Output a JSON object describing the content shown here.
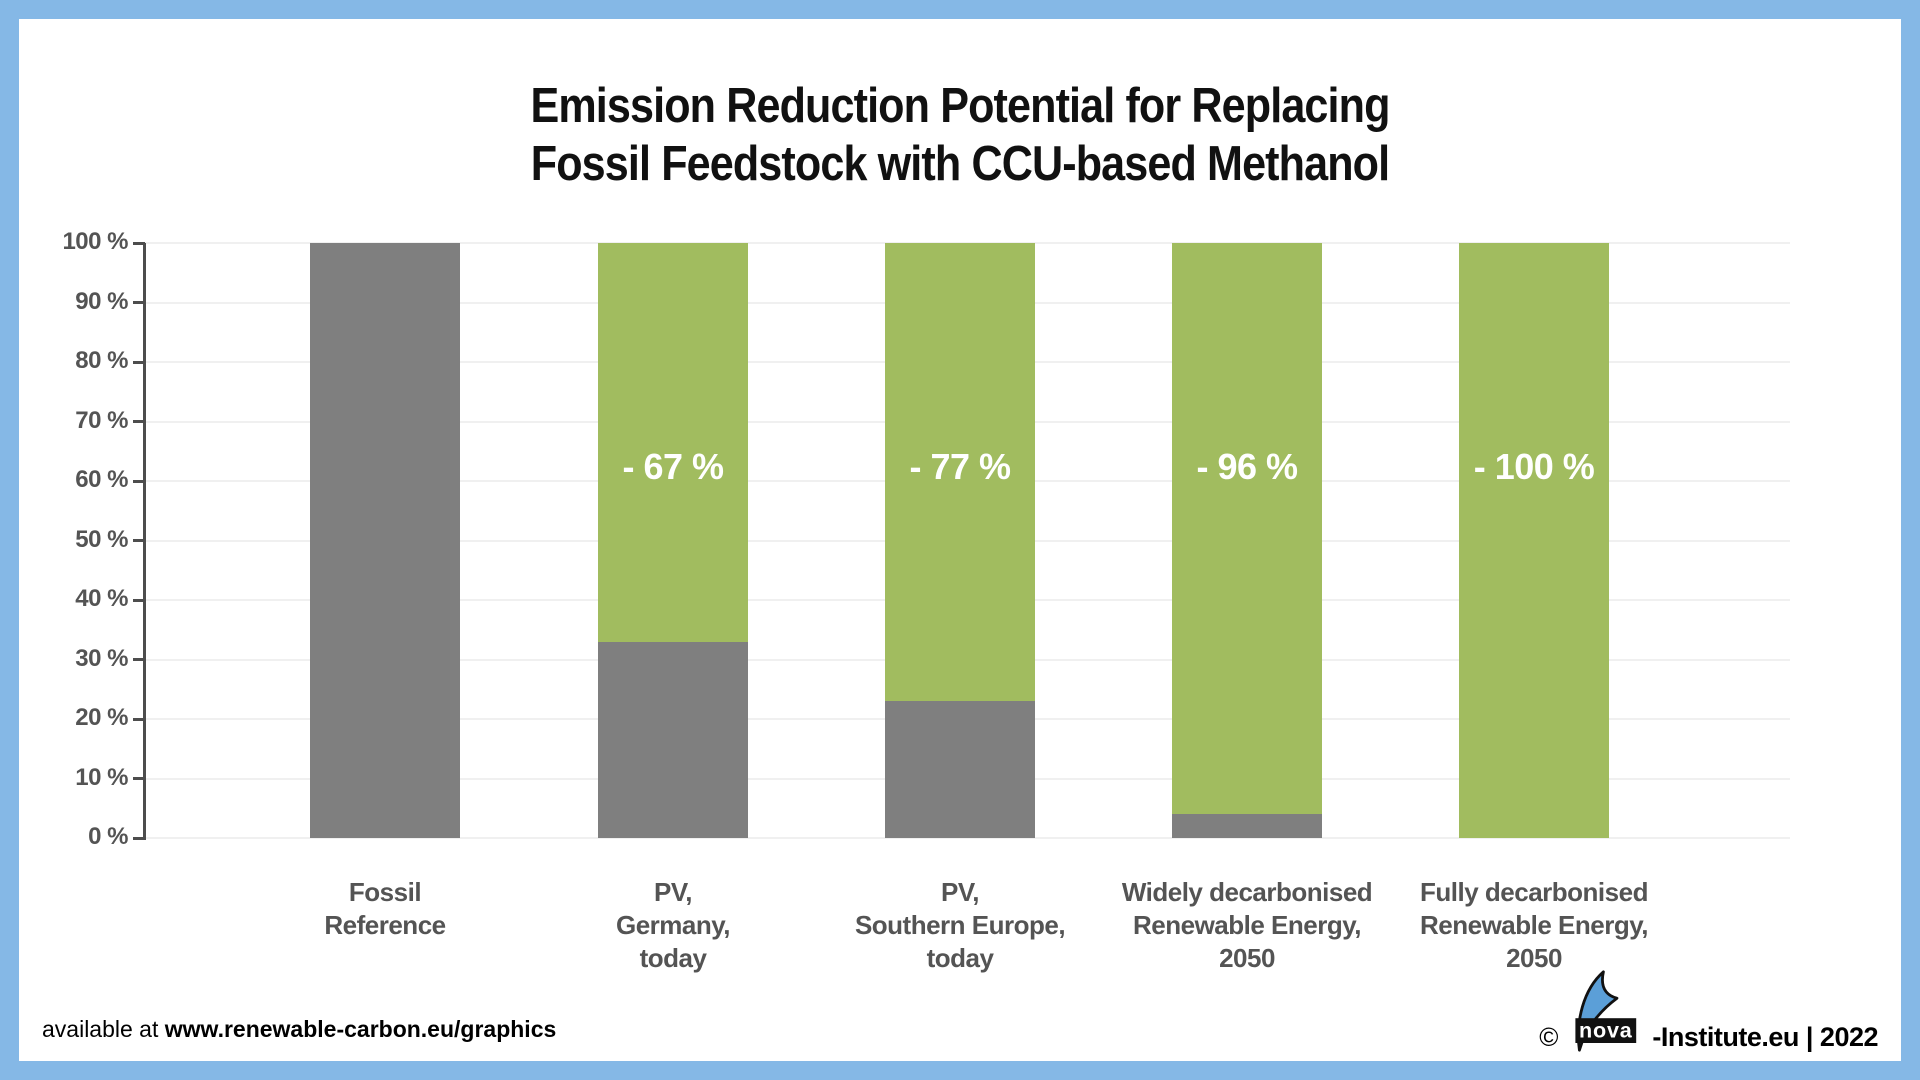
{
  "title": {
    "line1": "Emission Reduction Potential for Replacing",
    "line2": "Fossil  Feedstock with CCU-based Methanol"
  },
  "chart_data": {
    "type": "bar",
    "subtype": "stacked",
    "title": "Emission Reduction Potential for Replacing Fossil Feedstock with CCU-based Methanol",
    "categories": [
      "Fossil\nReference",
      "PV,\nGermany,\ntoday",
      "PV,\nSouthern Europe,\ntoday",
      "Widely decarbonised\nRenewable Energy,\n2050",
      "Fully decarbonised\nRenewable Energy,\n2050"
    ],
    "series": [
      {
        "name": "remaining_emissions",
        "color": "#7f7f7f",
        "values": [
          100,
          33,
          23,
          4,
          0
        ]
      },
      {
        "name": "emission_reduction",
        "color": "#a1bc5f",
        "values": [
          0,
          67,
          77,
          96,
          100
        ]
      }
    ],
    "bar_labels": [
      "",
      "- 67 %",
      "- 77 %",
      "- 96 %",
      "- 100 %"
    ],
    "y_ticks": [
      "0 %",
      "10 %",
      "20 %",
      "30 %",
      "40 %",
      "50 %",
      "60 %",
      "70 %",
      "80 %",
      "90 %",
      "100 %"
    ],
    "ylim": [
      0,
      100
    ],
    "grid": true,
    "legend": "none"
  },
  "colors": {
    "frame_border": "#85b8e6",
    "bar_gray": "#7f7f7f",
    "bar_green": "#a1bc5f",
    "axis": "#4d4d4d",
    "tick_label": "#545454",
    "gridline": "#f0f0f0",
    "value_label": "#ffffff",
    "logo_blue": "#5b9fd8",
    "logo_black": "#111111"
  },
  "footer": {
    "left_regular": "available at ",
    "left_bold": "www.renewable-carbon.eu/graphics",
    "copyright": "©",
    "logo_text": "nova",
    "right_text": "-Institute.eu | 2022"
  }
}
